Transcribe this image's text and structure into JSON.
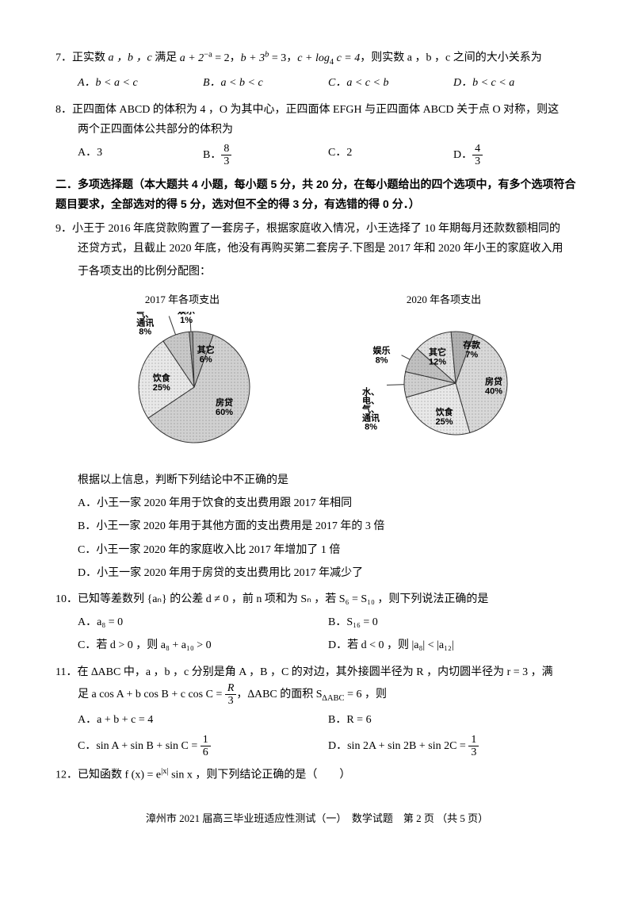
{
  "q7": {
    "num": "7．",
    "text_pre": "正实数 ",
    "vars": "a ，b ，c",
    "text_mid": " 满足 ",
    "eq1_a": "a + 2",
    "eq1_exp": "−a",
    "eq1_b": " = 2",
    "sep1": "，",
    "eq2_a": "b + 3",
    "eq2_exp": "b",
    "eq2_b": " = 3",
    "sep2": "，",
    "eq3": "c + log",
    "eq3_sub": "4",
    "eq3_b": " c = 4",
    "text_end": "，则实数 a ，b ，c 之间的大小关系为",
    "optA": "A．b < a < c",
    "optB": "B．a < b < c",
    "optC": "C．a < c < b",
    "optD": "D．b < c < a"
  },
  "q8": {
    "num": "8．",
    "line1": "正四面体 ABCD 的体积为 4 ，O 为其中心，正四面体 EFGH 与正四面体 ABCD 关于点 O 对称，则这",
    "line2": "两个正四面体公共部分的体积为",
    "optA": "A．3",
    "optB_label": "B．",
    "optB_num": "8",
    "optB_den": "3",
    "optC": "C．2",
    "optD_label": "D．",
    "optD_num": "4",
    "optD_den": "3"
  },
  "section2": {
    "title": "二．多项选择题（本大题共 4 小题，每小题 5 分，共 20 分，在每小题给出的四个选项中，有多个选项符合题目要求，全部选对的得 5 分，选对但不全的得 3 分，有选错的得 0 分．）"
  },
  "q9": {
    "num": "9．",
    "line1": "小王于 2016 年底贷款购置了一套房子，根据家庭收入情况，小王选择了 10 年期每月还款数额相同的",
    "line2": "还贷方式，且截止 2020 年底，他没有再购买第二套房子.下图是 2017 年和 2020 年小王的家庭收入用",
    "line3": "于各项支出的比例分配图：",
    "chart1_title": "2017 年各项支出",
    "chart2_title": "2020 年各项支出",
    "pie1": {
      "slices": [
        {
          "label": "房贷",
          "pct": "60%",
          "value": 60,
          "color": "#d0d0d0"
        },
        {
          "label": "饮食",
          "pct": "25%",
          "value": 25,
          "color": "#e8e8e8"
        },
        {
          "label": "水、电、气、通讯",
          "pct": "8%",
          "value": 8,
          "color": "#c8c8c8"
        },
        {
          "label": "娱乐",
          "pct": "1%",
          "value": 1,
          "color": "#a0a0a0"
        },
        {
          "label": "其它",
          "pct": "6%",
          "value": 6,
          "color": "#b8b8b8"
        }
      ]
    },
    "pie2": {
      "slices": [
        {
          "label": "房贷",
          "pct": "40%",
          "value": 40,
          "color": "#d8d8d8"
        },
        {
          "label": "饮食",
          "pct": "25%",
          "value": 25,
          "color": "#e8e8e8"
        },
        {
          "label": "水、电、气、通讯",
          "pct": "8%",
          "value": 8,
          "color": "#d0d0d0"
        },
        {
          "label": "娱乐",
          "pct": "8%",
          "value": 8,
          "color": "#c0c0c0"
        },
        {
          "label": "其它",
          "pct": "12%",
          "value": 12,
          "color": "#e0e0e0"
        },
        {
          "label": "存款",
          "pct": "7%",
          "value": 7,
          "color": "#b0b0b0"
        }
      ]
    },
    "after_chart": "根据以上信息，判断下列结论中不正确的是",
    "optA": "A．小王一家 2020 年用于饮食的支出费用跟 2017 年相同",
    "optB": "B．小王一家 2020 年用于其他方面的支出费用是 2017 年的 3 倍",
    "optC": "C．小王一家 2020 年的家庭收入比 2017 年增加了 1 倍",
    "optD": "D．小王一家 2020 年用于房贷的支出费用比 2017 年减少了"
  },
  "q10": {
    "num": "10．",
    "text": "已知等差数列 {aₙ} 的公差 d ≠ 0 ，前 n 项和为 Sₙ ，若 S₆ = S₁₀ ，则下列说法正确的是",
    "optA": "A．a₈ = 0",
    "optB": "B．S₁₆ = 0",
    "optC": "C．若 d > 0 ，则 a₈ + a₁₀ > 0",
    "optD": "D．若 d < 0 ，则 |a₈| < |a₁₂|"
  },
  "q11": {
    "num": "11．",
    "line1_a": "在 ∆ABC 中，a ，b ，c 分别是角 A ，B ，C 的对边，其外接圆半径为 R ，内切圆半径为 r = 3 ，满",
    "line2_a": "足 a cos A + b cos B + c cos C = ",
    "line2_num": "R",
    "line2_den": "3",
    "line2_b": "，∆ABC 的面积 S",
    "line2_sub": "∆ABC",
    "line2_c": " = 6 ，则",
    "optA": "A．a + b + c = 4",
    "optB": "B．R = 6",
    "optC_a": "C．sin A + sin B + sin C = ",
    "optC_num": "1",
    "optC_den": "6",
    "optD_a": "D．sin 2A + sin 2B + sin 2C = ",
    "optD_num": "1",
    "optD_den": "3"
  },
  "q12": {
    "num": "12．",
    "text_a": "已知函数 f (x) = e",
    "text_exp": "|x|",
    "text_b": " sin x ，则下列结论正确的是（　　）"
  },
  "footer": "漳州市 2021 届高三毕业班适应性测试（一）　数学试题　第 2 页 （共 5 页）"
}
